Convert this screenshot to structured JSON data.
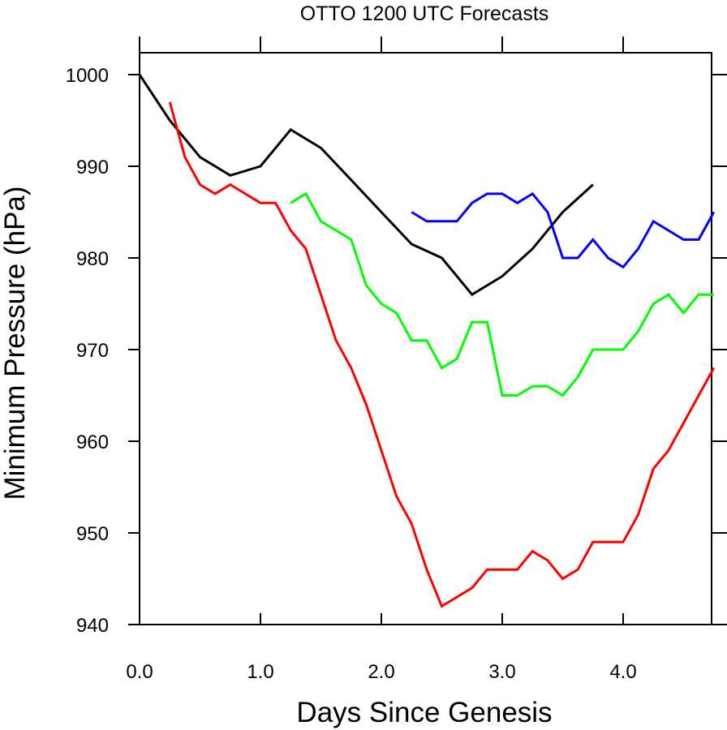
{
  "chart_data": {
    "type": "line",
    "title": "OTTO 1200 UTC Forecasts",
    "xlabel": "Days Since Genesis",
    "ylabel": "Minimum Pressure (hPa)",
    "xlim": [
      0,
      4.75
    ],
    "ylim": [
      940,
      1002
    ],
    "x_ticks": [
      0,
      1,
      2,
      3,
      4
    ],
    "x_tick_labels": [
      "0.0",
      "1.0",
      "2.0",
      "3.0",
      "4.0"
    ],
    "y_ticks": [
      940,
      950,
      960,
      970,
      980,
      990,
      1000
    ],
    "y_tick_labels": [
      "940",
      "950",
      "960",
      "970",
      "980",
      "990",
      "1000"
    ],
    "grid": false,
    "series": [
      {
        "color": "#000000",
        "x": [
          0,
          0.25,
          0.5,
          0.75,
          1.0,
          1.25,
          1.5,
          1.75,
          2.0,
          2.25,
          2.5,
          2.75,
          3.0,
          3.25,
          3.5,
          3.75
        ],
        "y": [
          1000,
          995,
          991,
          989,
          990,
          994,
          992,
          988.5,
          985,
          981.5,
          980,
          976,
          978,
          981,
          985,
          988
        ]
      },
      {
        "color": "#ff0000",
        "x": [
          0.25,
          0.375,
          0.5,
          0.625,
          0.75,
          0.875,
          1.0,
          1.125,
          1.25,
          1.375,
          1.5,
          1.625,
          1.75,
          1.875,
          2.0,
          2.125,
          2.25,
          2.375,
          2.5,
          2.625,
          2.75,
          2.875,
          3.0,
          3.125,
          3.25,
          3.375,
          3.5,
          3.625,
          3.75,
          3.875,
          4.0,
          4.125,
          4.25,
          4.375,
          4.5,
          4.625,
          4.75
        ],
        "y": [
          997,
          991,
          988,
          987,
          988,
          987,
          986,
          986,
          983,
          981,
          976,
          971,
          968,
          964,
          959,
          954,
          951,
          946,
          942,
          943,
          944,
          946,
          946,
          946,
          948,
          947,
          945,
          946,
          949,
          949,
          949,
          952,
          957,
          959,
          962,
          965,
          968
        ]
      },
      {
        "color": "#00ff00",
        "x": [
          1.25,
          1.375,
          1.5,
          1.625,
          1.75,
          1.875,
          2.0,
          2.125,
          2.25,
          2.375,
          2.5,
          2.625,
          2.75,
          2.875,
          3.0,
          3.125,
          3.25,
          3.375,
          3.5,
          3.625,
          3.75,
          3.875,
          4.0,
          4.125,
          4.25,
          4.375,
          4.5,
          4.625,
          4.75
        ],
        "y": [
          986,
          987,
          984,
          983,
          982,
          977,
          975,
          974,
          971,
          971,
          968,
          969,
          973,
          973,
          965,
          965,
          966,
          966,
          965,
          967,
          970,
          970,
          970,
          972,
          975,
          976,
          974,
          976,
          976
        ]
      },
      {
        "color": "#0000ff",
        "x": [
          2.25,
          2.375,
          2.5,
          2.625,
          2.75,
          2.875,
          3.0,
          3.125,
          3.25,
          3.375,
          3.5,
          3.625,
          3.75,
          3.875,
          4.0,
          4.125,
          4.25,
          4.375,
          4.5,
          4.625,
          4.75
        ],
        "y": [
          985,
          984,
          984,
          984,
          986,
          987,
          987,
          986,
          987,
          985,
          980,
          980,
          982,
          980,
          979,
          981,
          984,
          983,
          982,
          982,
          985
        ]
      }
    ]
  }
}
